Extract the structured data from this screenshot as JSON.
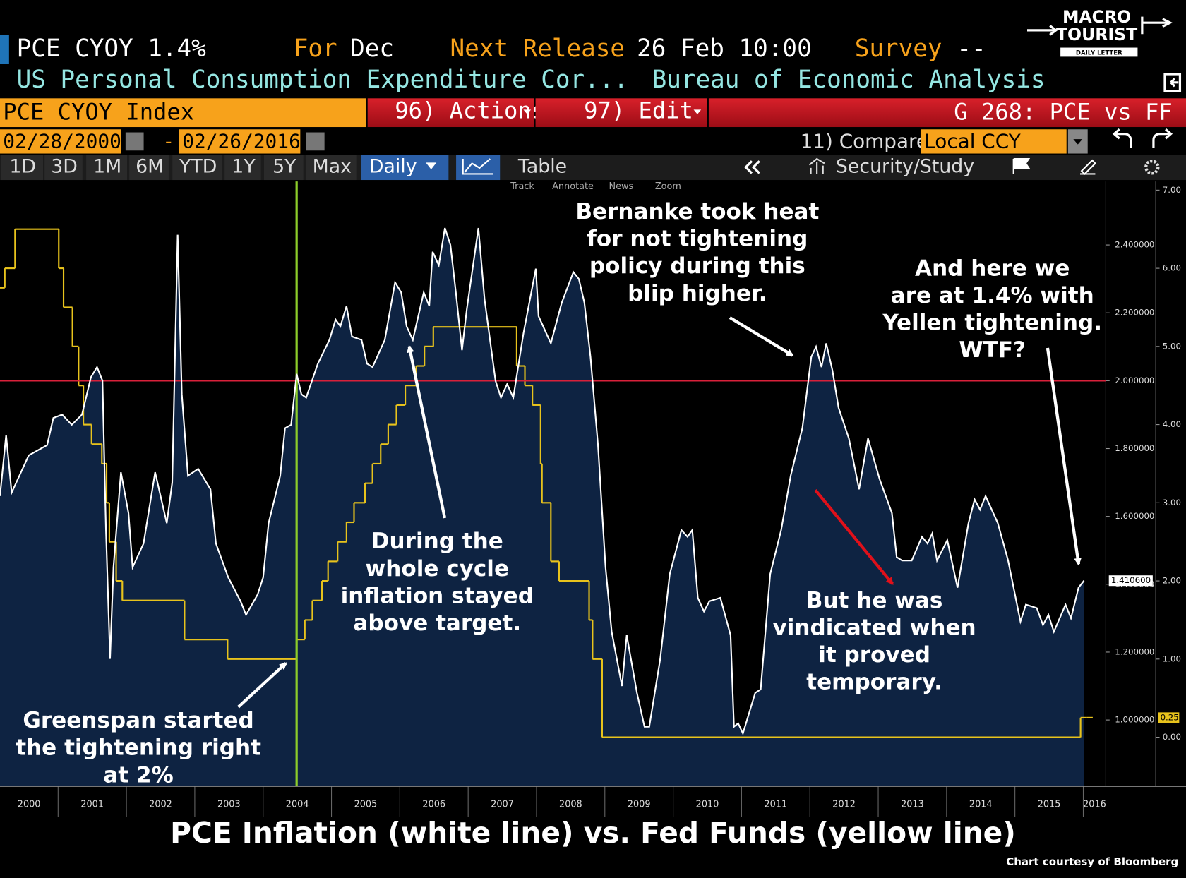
{
  "header": {
    "ticker": "PCE CYOY 1.4%",
    "for_label": "For",
    "for_value": "Dec",
    "release_label": "Next Release",
    "release_value": "26 Feb 10:00",
    "survey_label": "Survey",
    "survey_value": "--",
    "description": "US Personal Consumption Expenditure Cor...",
    "source": "Bureau of Economic Analysis"
  },
  "logo": {
    "line1": "MACRO",
    "line2": "TOURIST",
    "line3": "DAILY LETTER"
  },
  "toolbar": {
    "security": "PCE CYOY Index",
    "actions": "96) Actions",
    "edit": "97) Edit",
    "page": "G 268: PCE vs FF",
    "start_date": "02/28/2000",
    "date_sep": "-",
    "end_date": "02/26/2016",
    "compare": "11) Compare",
    "currency": "Local CCY",
    "periods": [
      "1D",
      "3D",
      "1M",
      "6M",
      "YTD",
      "1Y",
      "5Y",
      "Max"
    ],
    "frequency": "Daily",
    "table": "Table",
    "security_study": "Security/Study",
    "chart_tools": [
      "Track",
      "Annotate",
      "News",
      "Zoom"
    ]
  },
  "chart_data": {
    "type": "line",
    "grid": false,
    "xlim": [
      2000.15,
      2016.33
    ],
    "xticks": [
      2000,
      2001,
      2002,
      2003,
      2004,
      2005,
      2006,
      2007,
      2008,
      2009,
      2010,
      2011,
      2012,
      2013,
      2014,
      2015,
      2016
    ],
    "ylim": [
      0.804,
      2.587
    ],
    "yticks": [
      {
        "value": 1.0,
        "label": "1.000000"
      },
      {
        "value": 1.2,
        "label": "1.200000"
      },
      {
        "value": 1.4,
        "label": "1.400000"
      },
      {
        "value": 1.6,
        "label": "1.600000"
      },
      {
        "value": 1.8,
        "label": "1.800000"
      },
      {
        "value": 2.0,
        "label": "2.000000"
      },
      {
        "value": 2.2,
        "label": "2.200000"
      },
      {
        "value": 2.4,
        "label": "2.400000"
      }
    ],
    "y2lim": [
      -0.63,
      7.11
    ],
    "y2ticks": [
      {
        "value": 0,
        "label": "0.00"
      },
      {
        "value": 1,
        "label": "1.00"
      },
      {
        "value": 2,
        "label": "2.00"
      },
      {
        "value": 3,
        "label": "3.00"
      },
      {
        "value": 4,
        "label": "4.00"
      },
      {
        "value": 5,
        "label": "5.00"
      },
      {
        "value": 6,
        "label": "6.00"
      },
      {
        "value": 7,
        "label": "7.00"
      }
    ],
    "series": [
      {
        "color": "#ffffff",
        "fill": "#0e2342",
        "x": [
          2000.15,
          2000.24,
          2000.32,
          2000.57,
          2000.84,
          2000.93,
          2001.06,
          2001.2,
          2001.35,
          2001.48,
          2001.57,
          2001.65,
          2001.7,
          2001.76,
          2001.81,
          2001.92,
          2002.03,
          2002.09,
          2002.25,
          2002.42,
          2002.59,
          2002.67,
          2002.75,
          2002.81,
          2002.9,
          2003.05,
          2003.23,
          2003.31,
          2003.49,
          2003.67,
          2003.75,
          2003.92,
          2004.0,
          2004.08,
          2004.25,
          2004.32,
          2004.41,
          2004.49,
          2004.56,
          2004.63,
          2004.8,
          2004.97,
          2005.06,
          2005.13,
          2005.22,
          2005.3,
          2005.44,
          2005.52,
          2005.6,
          2005.78,
          2005.93,
          2006.02,
          2006.1,
          2006.19,
          2006.35,
          2006.43,
          2006.48,
          2006.57,
          2006.66,
          2006.74,
          2006.82,
          2006.91,
          2006.98,
          2007.15,
          2007.24,
          2007.4,
          2007.48,
          2007.57,
          2007.66,
          2007.81,
          2007.99,
          2008.03,
          2008.21,
          2008.37,
          2008.54,
          2008.62,
          2008.7,
          2008.79,
          2008.9,
          2009.01,
          2009.1,
          2009.25,
          2009.32,
          2009.47,
          2009.58,
          2009.65,
          2009.81,
          2009.95,
          2010.12,
          2010.21,
          2010.28,
          2010.36,
          2010.45,
          2010.53,
          2010.69,
          2010.84,
          2010.89,
          2010.95,
          2011.02,
          2011.2,
          2011.28,
          2011.42,
          2011.58,
          2011.72,
          2011.89,
          2012.02,
          2012.09,
          2012.17,
          2012.24,
          2012.33,
          2012.42,
          2012.57,
          2012.72,
          2012.85,
          2013.02,
          2013.2,
          2013.27,
          2013.35,
          2013.49,
          2013.64,
          2013.72,
          2013.79,
          2013.86,
          2014.01,
          2014.16,
          2014.32,
          2014.41,
          2014.49,
          2014.57,
          2014.75,
          2014.9,
          2015.08,
          2015.16,
          2015.32,
          2015.41,
          2015.49,
          2015.57,
          2015.74,
          2015.82,
          2015.93,
          2016.01
        ],
        "values": [
          1.66,
          1.84,
          1.67,
          1.78,
          1.81,
          1.89,
          1.9,
          1.87,
          1.9,
          2.01,
          2.04,
          2.0,
          1.56,
          1.18,
          1.45,
          1.73,
          1.61,
          1.45,
          1.52,
          1.73,
          1.58,
          1.7,
          2.43,
          1.96,
          1.72,
          1.74,
          1.68,
          1.52,
          1.42,
          1.35,
          1.31,
          1.37,
          1.42,
          1.58,
          1.72,
          1.86,
          1.87,
          2.02,
          1.96,
          1.95,
          2.05,
          2.12,
          2.18,
          2.16,
          2.22,
          2.13,
          2.12,
          2.05,
          2.04,
          2.12,
          2.29,
          2.26,
          2.16,
          2.12,
          2.26,
          2.22,
          2.38,
          2.34,
          2.45,
          2.4,
          2.26,
          2.09,
          2.21,
          2.45,
          2.24,
          2.0,
          1.95,
          1.99,
          1.95,
          2.14,
          2.33,
          2.19,
          2.11,
          2.23,
          2.32,
          2.3,
          2.23,
          2.07,
          1.81,
          1.45,
          1.26,
          1.1,
          1.25,
          1.08,
          0.98,
          0.98,
          1.18,
          1.43,
          1.56,
          1.54,
          1.56,
          1.36,
          1.32,
          1.35,
          1.36,
          1.25,
          0.98,
          0.99,
          0.96,
          1.08,
          1.09,
          1.43,
          1.56,
          1.72,
          1.86,
          2.07,
          2.1,
          2.04,
          2.11,
          2.03,
          1.92,
          1.83,
          1.68,
          1.83,
          1.71,
          1.61,
          1.48,
          1.47,
          1.47,
          1.54,
          1.52,
          1.55,
          1.47,
          1.53,
          1.39,
          1.58,
          1.65,
          1.62,
          1.66,
          1.58,
          1.47,
          1.29,
          1.34,
          1.33,
          1.28,
          1.31,
          1.26,
          1.34,
          1.3,
          1.39,
          1.4106
        ]
      },
      {
        "color": "#e8c31c",
        "axis": "y2",
        "step": true,
        "x": [
          2000.15,
          2000.22,
          2000.37,
          2001.01,
          2001.08,
          2001.21,
          2001.3,
          2001.37,
          2001.49,
          2001.64,
          2001.71,
          2001.75,
          2001.85,
          2001.94,
          2002.85,
          2003.48,
          2004.49,
          2004.61,
          2004.72,
          2004.86,
          2004.95,
          2005.09,
          2005.22,
          2005.33,
          2005.49,
          2005.6,
          2005.72,
          2005.83,
          2005.95,
          2006.08,
          2006.24,
          2006.36,
          2006.49,
          2007.71,
          2007.83,
          2007.94,
          2008.06,
          2008.08,
          2008.21,
          2008.33,
          2008.77,
          2008.82,
          2008.96,
          2015.96,
          2016.05
        ],
        "values": [
          5.75,
          6.0,
          6.5,
          6.0,
          5.5,
          5.0,
          4.5,
          4.0,
          3.75,
          3.5,
          3.0,
          2.5,
          2.0,
          1.75,
          1.25,
          1.0,
          1.25,
          1.5,
          1.75,
          2.0,
          2.25,
          2.5,
          2.75,
          3.0,
          3.25,
          3.5,
          3.75,
          4.0,
          4.25,
          4.5,
          4.75,
          5.0,
          5.25,
          4.75,
          4.5,
          4.25,
          3.5,
          3.0,
          2.25,
          2.0,
          1.5,
          1.0,
          0,
          0.25,
          0.25
        ]
      }
    ],
    "reference_line": {
      "value": 2.0,
      "color": "#d8203a"
    },
    "marker_line": {
      "x": 2004.49,
      "color": "#8ccc2a"
    },
    "value_tags": [
      {
        "value": 1.4106,
        "label": "1.410600"
      },
      {
        "value": 0.25,
        "label": "0.25",
        "axis": "y2"
      }
    ],
    "annotations": [
      {
        "lines": [
          "Bernanke took heat",
          "for not tightening",
          "policy during this",
          "blip higher."
        ]
      },
      {
        "lines": [
          "And here we",
          "are at 1.4% with",
          "Yellen tightening.",
          "WTF?"
        ]
      },
      {
        "lines": [
          "During the",
          "whole cycle",
          "inflation stayed",
          "above target."
        ]
      },
      {
        "lines": [
          "But he was",
          "vindicated when",
          "it proved",
          "temporary."
        ]
      },
      {
        "lines": [
          "Greenspan started",
          "the tightening right",
          "at 2%"
        ]
      }
    ]
  },
  "footer": {
    "title": "PCE Inflation (white line) vs. Fed Funds (yellow line)",
    "credit": "Chart courtesy of Bloomberg"
  }
}
